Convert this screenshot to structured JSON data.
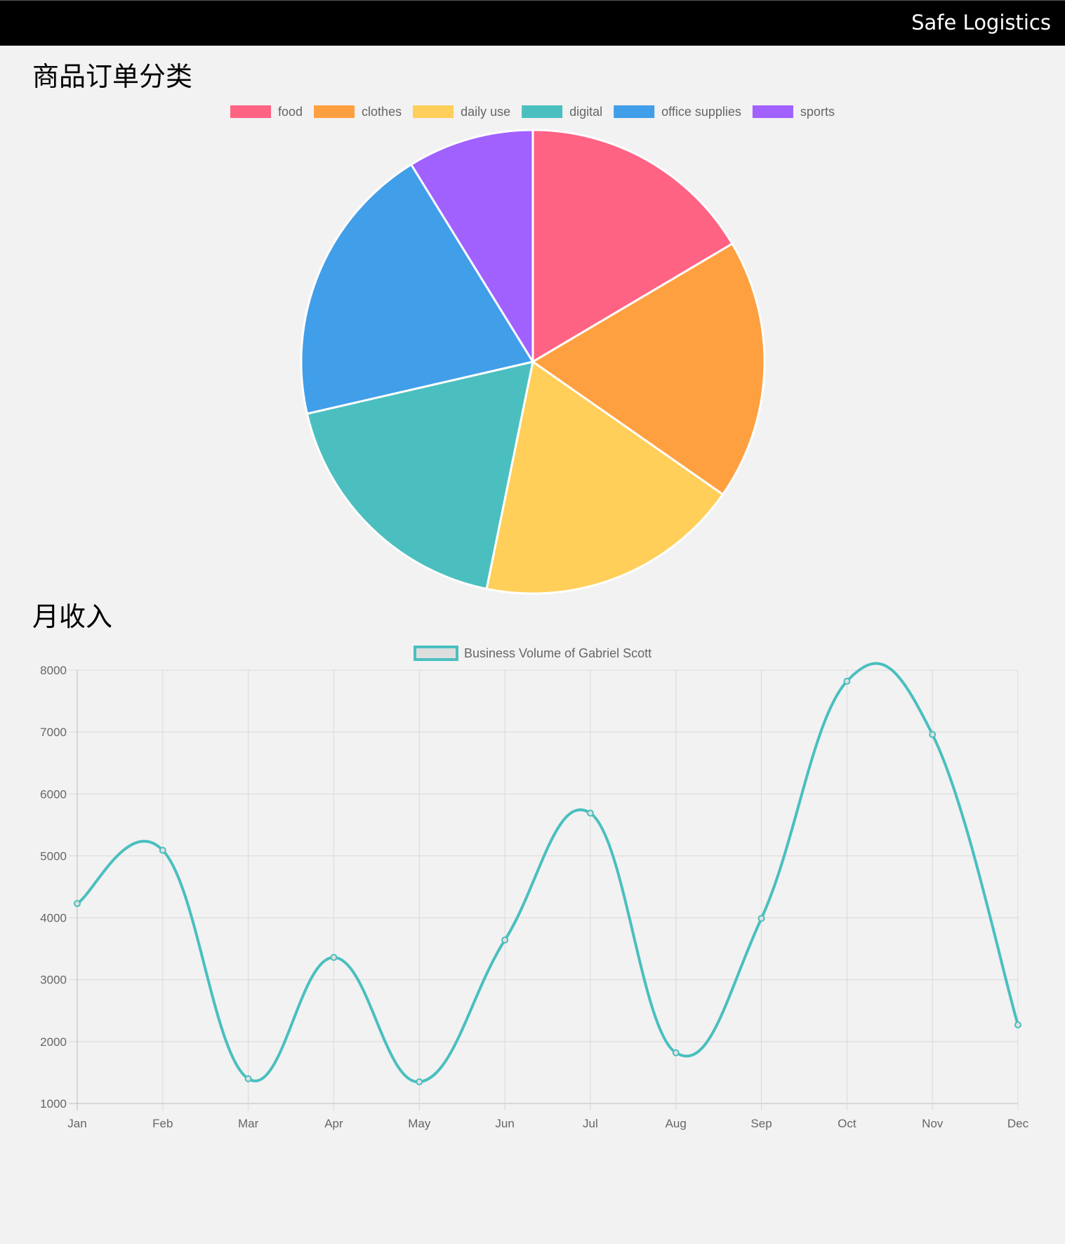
{
  "header": {
    "brand": "Safe Logistics"
  },
  "sections": {
    "pie_title": "商品订单分类",
    "line_title": "月收入"
  },
  "chart_data": [
    {
      "type": "pie",
      "title": "",
      "legend_position": "top",
      "categories": [
        "food",
        "clothes",
        "daily use",
        "digital",
        "office supplies",
        "sports"
      ],
      "values": [
        16.5,
        18.2,
        18.5,
        18.2,
        19.8,
        8.8
      ],
      "colors": [
        "#ff6384",
        "#ffa040",
        "#ffcf5a",
        "#4bbfbf",
        "#419ee9",
        "#a061ff"
      ]
    },
    {
      "type": "line",
      "title": "",
      "legend_position": "top",
      "x": [
        "Jan",
        "Feb",
        "Mar",
        "Apr",
        "May",
        "Jun",
        "Jul",
        "Aug",
        "Sep",
        "Oct",
        "Nov",
        "Dec"
      ],
      "series": [
        {
          "name": "Business Volume of Gabriel Scott",
          "values": [
            4230,
            5090,
            1400,
            3360,
            1350,
            3640,
            5690,
            1820,
            3990,
            7820,
            6960,
            2270
          ],
          "color": "#4bbfbf"
        }
      ],
      "ylim": [
        1000,
        8000
      ],
      "y_ticks": [
        1000,
        2000,
        3000,
        4000,
        5000,
        6000,
        7000,
        8000
      ],
      "grid": true
    }
  ]
}
